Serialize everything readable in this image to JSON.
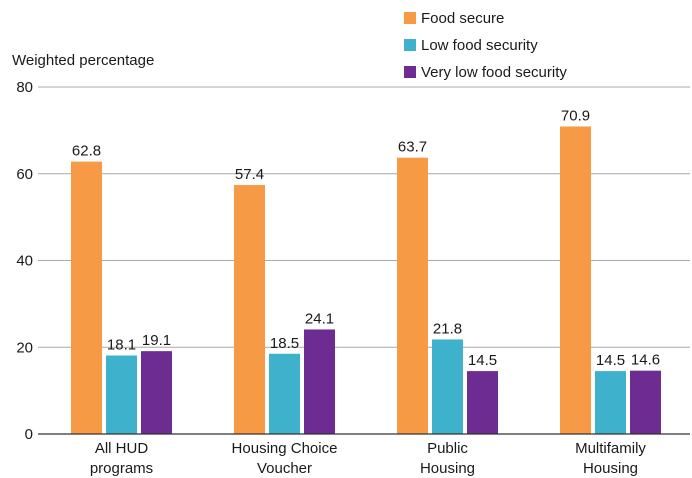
{
  "chart_data": {
    "type": "bar",
    "title": "",
    "xlabel": "",
    "ylabel": "Weighted percentage",
    "ylim": [
      0,
      80
    ],
    "yticks": [
      0,
      20,
      40,
      60,
      80
    ],
    "grid": true,
    "legend_position": "top-right",
    "categories": [
      [
        "All HUD",
        "programs"
      ],
      [
        "Housing Choice",
        "Voucher"
      ],
      [
        "Public",
        "Housing"
      ],
      [
        "Multifamily",
        "Housing"
      ]
    ],
    "series": [
      {
        "name": "Food secure",
        "color": "#f79a45",
        "values": [
          62.8,
          57.4,
          63.7,
          70.9
        ]
      },
      {
        "name": "Low food security",
        "color": "#3eb1cd",
        "values": [
          18.1,
          18.5,
          21.8,
          14.5
        ]
      },
      {
        "name": "Very low food security",
        "color": "#6d2c91",
        "values": [
          19.1,
          24.1,
          14.5,
          14.6
        ]
      }
    ]
  }
}
